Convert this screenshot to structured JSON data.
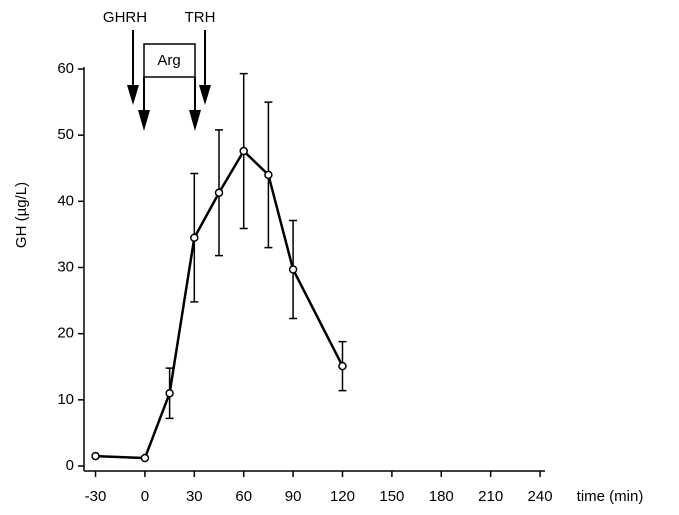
{
  "chart_data": {
    "type": "line",
    "x_label": "time (min)",
    "y_label": "GH (µg/L)",
    "x": [
      -30,
      0,
      15,
      30,
      45,
      60,
      75,
      90,
      120
    ],
    "series": [
      {
        "color": "#000000",
        "values": [
          1.5,
          1.2,
          11,
          34.5,
          41.3,
          47.6,
          44,
          29.7,
          15.1
        ],
        "errors": [
          null,
          null,
          3.8,
          9.7,
          9.5,
          11.7,
          11,
          7.4,
          3.7
        ]
      }
    ],
    "xlim": [
      -37,
      243
    ],
    "xticks": [
      -30,
      0,
      30,
      60,
      90,
      120,
      150,
      180,
      210,
      240
    ],
    "ylim": [
      0,
      60
    ],
    "yticks": [
      0,
      10,
      20,
      30,
      40,
      50,
      60
    ],
    "annotations": [
      "GHRH",
      "TRH",
      "Arg"
    ]
  }
}
